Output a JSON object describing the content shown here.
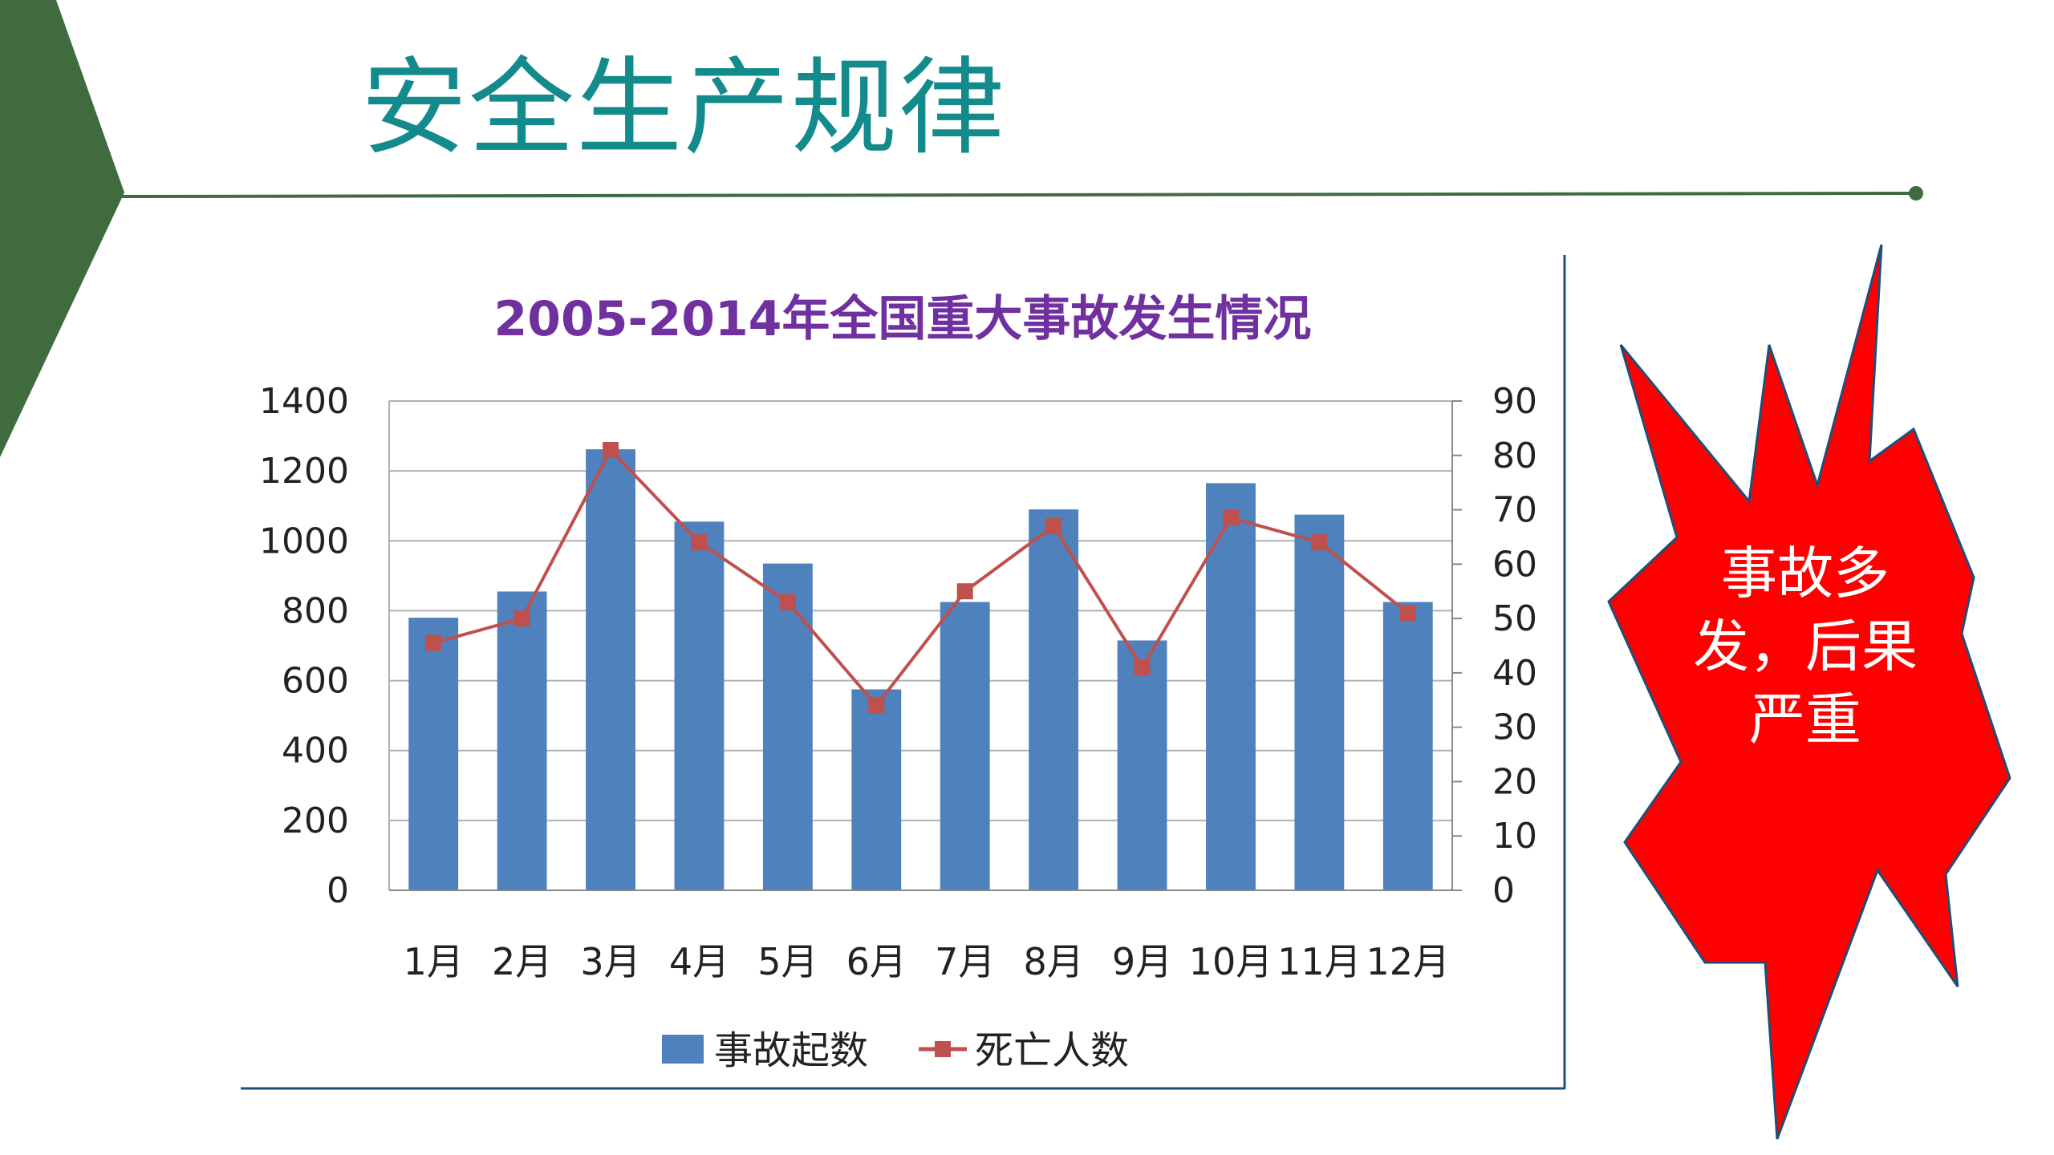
{
  "slide": {
    "title": "安全生产规律",
    "burst_text": "事故多发，后果严重"
  },
  "colors": {
    "deco_green": "#3f6b3f",
    "title_teal": "#138a8c",
    "chart_title_purple": "#7030a0",
    "bar_blue": "#4f81bd",
    "line_red": "#c0504d",
    "burst_red": "#ff0000"
  },
  "chart_data": {
    "type": "bar",
    "title": "2005-2014年全国重大事故发生情况",
    "categories": [
      "1月",
      "2月",
      "3月",
      "4月",
      "5月",
      "6月",
      "7月",
      "8月",
      "9月",
      "10月",
      "11月",
      "12月"
    ],
    "series": [
      {
        "name": "事故起数",
        "type": "bar",
        "axis": "left",
        "values": [
          780,
          855,
          1262,
          1055,
          935,
          575,
          825,
          1090,
          715,
          1165,
          1075,
          825
        ]
      },
      {
        "name": "死亡人数",
        "type": "line",
        "axis": "right",
        "values": [
          45.5,
          50,
          81,
          64,
          53,
          34,
          55,
          67,
          41,
          68.5,
          64,
          51
        ]
      }
    ],
    "y_left": {
      "ylim": [
        0,
        1400
      ],
      "ticks": [
        "0",
        "200",
        "400",
        "600",
        "800",
        "1000",
        "1200",
        "1400"
      ]
    },
    "y_right": {
      "ylim": [
        0,
        90
      ],
      "ticks": [
        "0",
        "10",
        "20",
        "30",
        "40",
        "50",
        "60",
        "70",
        "80",
        "90"
      ]
    },
    "grid": true,
    "legend": "bottom"
  }
}
